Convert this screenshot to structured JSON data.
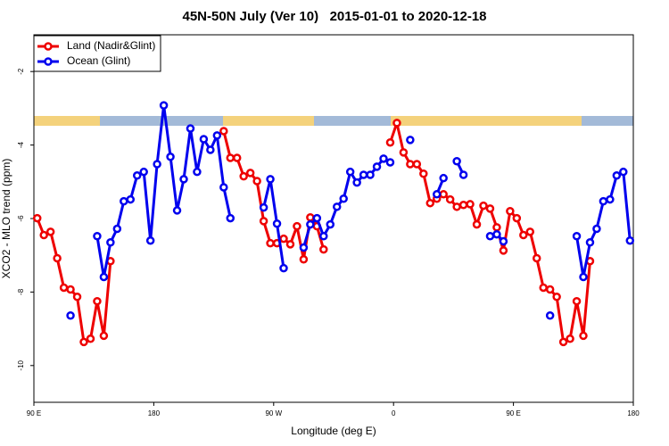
{
  "chart_data": {
    "type": "line",
    "title": "45N-50N July (Ver 10)   2015-01-01 to 2020-12-18",
    "xlabel": "Longitude (deg E)",
    "ylabel": "XCO2 - MLO trend (ppm)",
    "xlim": [
      90,
      540
    ],
    "ylim": [
      -11,
      -1
    ],
    "xticks": [
      {
        "value": 90,
        "label": "90 E"
      },
      180,
      {
        "value": 270,
        "label": "90 W"
      },
      {
        "value": 360,
        "label": "0"
      },
      {
        "value": 450,
        "label": "90 E"
      },
      {
        "value": 540,
        "label": "180"
      }
    ],
    "yticks": [
      -10,
      -8,
      -6,
      -4,
      -2
    ],
    "grid": false,
    "legend": "top-left",
    "x": [
      92.5,
      97.5,
      102.5,
      107.5,
      112.5,
      117.5,
      122.5,
      127.5,
      132.5,
      137.5,
      142.5,
      147.5,
      152.5,
      157.5,
      162.5,
      167.5,
      172.5,
      177.5,
      182.5,
      187.5,
      192.5,
      197.5,
      202.5,
      207.5,
      212.5,
      217.5,
      222.5,
      227.5,
      232.5,
      237.5,
      242.5,
      247.5,
      252.5,
      257.5,
      262.5,
      267.5,
      272.5,
      277.5,
      282.5,
      287.5,
      292.5,
      297.5,
      302.5,
      307.5,
      312.5,
      317.5,
      322.5,
      327.5,
      332.5,
      337.5,
      342.5,
      347.5,
      352.5,
      357.5,
      362.5,
      367.5,
      372.5,
      377.5,
      382.5,
      387.5,
      392.5,
      397.5,
      402.5,
      407.5,
      412.5,
      417.5,
      422.5,
      427.5,
      432.5,
      437.5,
      442.5,
      447.5,
      452.5,
      457.5,
      462.5,
      467.5,
      472.5,
      477.5,
      482.5,
      487.5,
      492.5,
      497.5,
      502.5,
      507.5,
      512.5,
      517.5,
      522.5,
      527.5,
      532.5,
      537.5
    ],
    "series": [
      {
        "name": "Land (Nadir&Glint)",
        "color": "#ee0000",
        "values": [
          -5.99,
          -6.45,
          -6.36,
          -7.08,
          -7.88,
          -7.93,
          -8.13,
          -9.36,
          -9.27,
          -8.25,
          -9.19,
          -7.16,
          null,
          null,
          null,
          null,
          null,
          null,
          null,
          null,
          null,
          null,
          null,
          null,
          null,
          null,
          null,
          null,
          -3.62,
          -4.35,
          -4.35,
          -4.85,
          -4.76,
          -4.98,
          -6.07,
          -6.67,
          -6.67,
          -6.55,
          -6.7,
          -6.21,
          -7.11,
          -5.97,
          -6.21,
          -6.84,
          null,
          null,
          null,
          null,
          null,
          null,
          null,
          null,
          null,
          -3.93,
          -3.4,
          -4.2,
          -4.52,
          -4.52,
          -4.78,
          -5.58,
          -5.46,
          -5.34,
          -5.48,
          -5.68,
          -5.63,
          -5.61,
          -6.16,
          -5.65,
          -5.73,
          -6.24,
          -6.87,
          -5.8,
          -5.99,
          -6.45,
          -6.36,
          -7.08,
          -7.88,
          -7.93,
          -8.13,
          -9.36,
          -9.27,
          -8.25,
          -9.19,
          -7.16,
          null,
          null,
          null,
          null,
          null,
          null
        ]
      },
      {
        "name": "Ocean (Glint)",
        "color": "#0000ee",
        "values": [
          null,
          null,
          null,
          null,
          null,
          -8.64,
          null,
          null,
          null,
          -6.48,
          -7.59,
          -6.65,
          -6.28,
          -5.53,
          -5.48,
          -4.83,
          -4.73,
          -6.6,
          -4.52,
          -2.92,
          -4.32,
          -5.78,
          -4.93,
          -3.55,
          -4.73,
          -3.84,
          -4.13,
          -3.74,
          -5.15,
          -5.99,
          null,
          null,
          null,
          null,
          -5.7,
          -4.93,
          -6.14,
          -7.35,
          null,
          null,
          -6.79,
          -6.16,
          -5.99,
          -6.48,
          -6.16,
          -5.68,
          -5.46,
          -4.73,
          -5.02,
          -4.81,
          -4.81,
          -4.59,
          -4.37,
          -4.47,
          null,
          null,
          -3.86,
          null,
          null,
          null,
          -5.34,
          -4.9,
          null,
          -4.44,
          -4.81,
          null,
          null,
          null,
          -6.48,
          -6.43,
          -6.62,
          null,
          null,
          null,
          null,
          null,
          null,
          -8.64,
          null,
          null,
          null,
          -6.48,
          -7.59,
          -6.65,
          -6.28,
          -5.53,
          -5.48,
          -4.83,
          -4.73,
          -6.6
        ]
      }
    ]
  }
}
